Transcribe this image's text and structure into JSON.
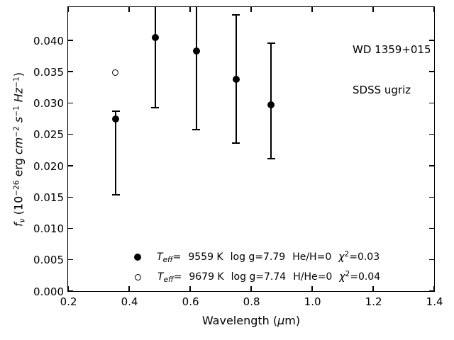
{
  "figure": {
    "background": "#ffffff",
    "foreground": "#000000"
  },
  "annotation": {
    "line1": "WD 1359+015",
    "line2": "SDSS ugriz"
  },
  "axes": {
    "xlabel": {
      "pre": "Wavelength (",
      "mu": "μ",
      "post": "m)"
    },
    "ylabel": {
      "f": "f",
      "nu": "ν",
      "p1": " (10",
      "e1": "−26",
      "p2": " erg ",
      "cm": "cm",
      "e2": "−2",
      "sp1": " ",
      "s": "s",
      "e3": "−1",
      "sp2": " ",
      "hz": "Hz",
      "e4": "−1",
      "p3": ")"
    }
  },
  "legend": {
    "rows": [
      {
        "marker": "filled-circle",
        "t": "T",
        "sub": "eff",
        "eq": "=",
        "temp": "9559 K",
        "logg": "log g=7.79",
        "comp": "He/H=0",
        "chi": "χ",
        "sup": "2",
        "val": "=0.03"
      },
      {
        "marker": "open-circle",
        "t": "T",
        "sub": "eff",
        "eq": "=",
        "temp": "9679 K",
        "logg": "log g=7.74",
        "comp": "H/He=0",
        "chi": "χ",
        "sup": "2",
        "val": "=0.04"
      }
    ]
  },
  "chart_data": {
    "type": "scatter",
    "title": "",
    "xlabel": "Wavelength (μm)",
    "ylabel": "f_ν (10^−26 erg cm^−2 s^−1 Hz^−1)",
    "xlim": [
      0.2,
      1.4
    ],
    "ylim": [
      0.0,
      0.0453
    ],
    "grid": false,
    "x_ticks": [
      0.2,
      0.4,
      0.6,
      0.8,
      1.0,
      1.2,
      1.4
    ],
    "x_tick_labels": [
      "0.2",
      "0.4",
      "0.6",
      "0.8",
      "1.0",
      "1.2",
      "1.4"
    ],
    "y_ticks": [
      0.0,
      0.005,
      0.01,
      0.015,
      0.02,
      0.025,
      0.03,
      0.035,
      0.04
    ],
    "y_tick_labels": [
      "0.000",
      "0.005",
      "0.010",
      "0.015",
      "0.020",
      "0.025",
      "0.030",
      "0.035",
      "0.040"
    ],
    "annotation": [
      "WD 1359+015",
      "SDSS ugriz"
    ],
    "legend_entries": [
      "Teff= 9559 K  log g=7.79  He/H=0  χ2=0.03",
      "Teff= 9679 K  log g=7.74  H/He=0  χ2=0.04"
    ],
    "series": [
      {
        "name": "Teff= 9559 K log g=7.79 He/H=0 χ2=0.03",
        "marker": "filled-circle",
        "points": [
          {
            "x": 0.356,
            "y": 0.0274,
            "err_lo": 0.0154,
            "err_hi": 0.0287,
            "clip_hi": false
          },
          {
            "x": 0.485,
            "y": 0.0404,
            "err_lo": 0.0293,
            "err_hi": null,
            "clip_hi": true
          },
          {
            "x": 0.62,
            "y": 0.0383,
            "err_lo": 0.0258,
            "err_hi": null,
            "clip_hi": true
          },
          {
            "x": 0.75,
            "y": 0.0338,
            "err_lo": 0.0236,
            "err_hi": 0.0441,
            "clip_hi": false
          },
          {
            "x": 0.866,
            "y": 0.0297,
            "err_lo": 0.0211,
            "err_hi": 0.0395,
            "clip_hi": false
          }
        ]
      },
      {
        "name": "Teff= 9679 K log g=7.74 H/He=0 χ2=0.04",
        "marker": "open-circle",
        "points": [
          {
            "x": 0.356,
            "y": 0.0348,
            "err_lo": null,
            "err_hi": null,
            "clip_hi": false
          }
        ]
      }
    ]
  }
}
